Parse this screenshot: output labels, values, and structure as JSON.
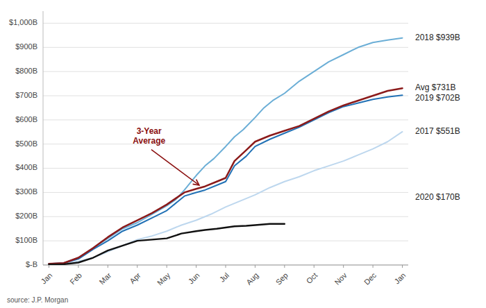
{
  "chart_data": {
    "type": "line",
    "source": "source: J.P. Morgan",
    "xlim": [
      -0.2,
      12.2
    ],
    "xticks": [
      {
        "value": 0,
        "label": "Jan"
      },
      {
        "value": 1,
        "label": "Feb"
      },
      {
        "value": 2,
        "label": "Mar"
      },
      {
        "value": 3,
        "label": "Apr"
      },
      {
        "value": 4,
        "label": "May"
      },
      {
        "value": 5,
        "label": "Jun"
      },
      {
        "value": 6,
        "label": "Jul"
      },
      {
        "value": 7,
        "label": "Aug"
      },
      {
        "value": 8,
        "label": "Sep"
      },
      {
        "value": 9,
        "label": "Oct"
      },
      {
        "value": 10,
        "label": "Nov"
      },
      {
        "value": 11,
        "label": "Dec"
      },
      {
        "value": 12,
        "label": "Jan"
      }
    ],
    "ylim": [
      0,
      1050
    ],
    "yticks": [
      {
        "value": 0,
        "label": "$-B"
      },
      {
        "value": 100,
        "label": "$100B"
      },
      {
        "value": 200,
        "label": "$200B"
      },
      {
        "value": 300,
        "label": "$300B"
      },
      {
        "value": 400,
        "label": "$400B"
      },
      {
        "value": 500,
        "label": "$500B"
      },
      {
        "value": 600,
        "label": "$600B"
      },
      {
        "value": 700,
        "label": "$700B"
      },
      {
        "value": 800,
        "label": "$800B"
      },
      {
        "value": 900,
        "label": "$900B"
      },
      {
        "value": 1000,
        "label": "$1,000B"
      }
    ],
    "grid": true,
    "series": [
      {
        "color": "#bdd7ee",
        "x": [
          0,
          0.5,
          1,
          1.5,
          2,
          2.5,
          3,
          3.5,
          4,
          4.5,
          5,
          5.5,
          6,
          6.5,
          7,
          7.5,
          8,
          8.5,
          9,
          9.5,
          10,
          10.5,
          11,
          11.5,
          12
        ],
        "values": [
          5,
          6,
          15,
          30,
          55,
          80,
          105,
          120,
          140,
          165,
          185,
          210,
          240,
          265,
          290,
          320,
          345,
          365,
          390,
          410,
          430,
          455,
          480,
          510,
          551
        ]
      },
      {
        "color": "#6baed6",
        "x": [
          0,
          0.5,
          1,
          1.5,
          2,
          2.5,
          3,
          3.5,
          4,
          4.3,
          4.6,
          5,
          5.3,
          5.6,
          6,
          6.3,
          6.6,
          7,
          7.3,
          7.6,
          8,
          8.5,
          9,
          9.5,
          10,
          10.5,
          11,
          11.5,
          12
        ],
        "values": [
          5,
          8,
          30,
          70,
          110,
          150,
          175,
          210,
          245,
          270,
          310,
          370,
          410,
          440,
          490,
          530,
          560,
          610,
          650,
          680,
          710,
          760,
          800,
          840,
          870,
          900,
          920,
          930,
          939
        ]
      },
      {
        "color": "#2171b5",
        "x": [
          0,
          0.5,
          1,
          1.5,
          2,
          2.5,
          3,
          3.5,
          4,
          4.3,
          4.6,
          5,
          5.3,
          5.7,
          6,
          6.3,
          6.7,
          7,
          7.5,
          8,
          8.5,
          9,
          9.5,
          10,
          10.5,
          11,
          11.5,
          12
        ],
        "values": [
          5,
          8,
          25,
          65,
          100,
          140,
          165,
          195,
          225,
          255,
          285,
          300,
          310,
          330,
          345,
          410,
          450,
          490,
          520,
          545,
          570,
          600,
          630,
          655,
          670,
          685,
          695,
          702
        ]
      },
      {
        "color": "#8B1A1A",
        "x": [
          0,
          0.5,
          1,
          1.5,
          2,
          2.5,
          3,
          3.5,
          4,
          4.3,
          4.6,
          5,
          5.3,
          5.7,
          6,
          6.3,
          6.7,
          7,
          7.5,
          8,
          8.5,
          9,
          9.5,
          10,
          10.5,
          11,
          11.5,
          12
        ],
        "values": [
          5,
          8,
          30,
          70,
          115,
          155,
          185,
          215,
          250,
          275,
          300,
          315,
          325,
          345,
          360,
          430,
          475,
          510,
          535,
          555,
          575,
          605,
          635,
          660,
          680,
          700,
          720,
          731
        ]
      },
      {
        "color": "#111111",
        "x": [
          0,
          0.5,
          1,
          1.5,
          2,
          2.5,
          3,
          3.5,
          4,
          4.5,
          5,
          5.3,
          5.7,
          6,
          6.3,
          6.7,
          7,
          7.5,
          8
        ],
        "values": [
          2,
          3,
          10,
          30,
          60,
          80,
          100,
          105,
          110,
          130,
          140,
          145,
          150,
          155,
          160,
          162,
          165,
          170,
          170
        ]
      }
    ],
    "annotations": [
      {
        "text": "3-Year\nAverage",
        "x": 5.1,
        "y": 330,
        "color": "#8B1010"
      },
      {
        "text": "2018  $939B",
        "y": 939,
        "color": "#222222"
      },
      {
        "text": "Avg  $731B",
        "y": 731,
        "color": "#222222"
      },
      {
        "text": "2019  $702B",
        "y": 702,
        "color": "#222222"
      },
      {
        "text": "2017  $551B",
        "y": 551,
        "color": "#222222"
      },
      {
        "text": "2020  $170B",
        "y": 280,
        "color": "#222222"
      }
    ]
  }
}
